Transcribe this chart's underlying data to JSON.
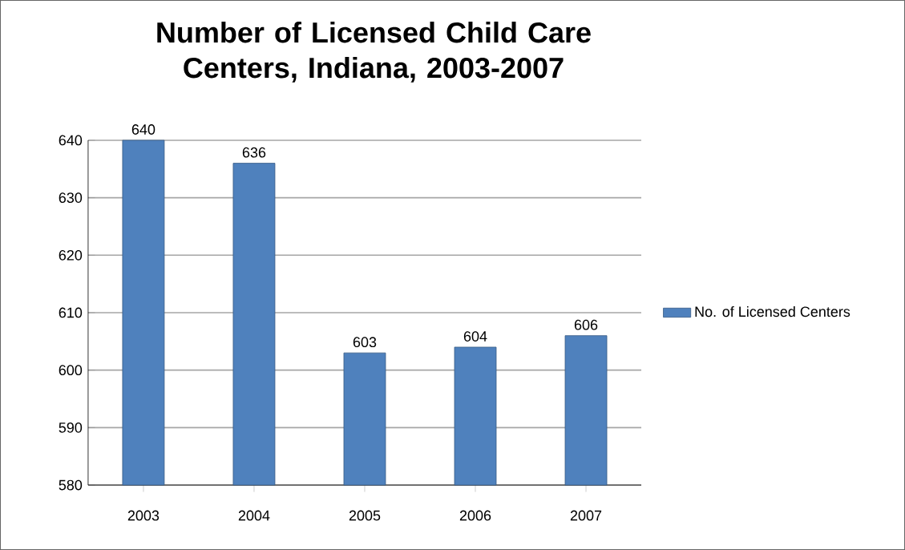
{
  "chart_data": {
    "type": "bar",
    "title": "Number of Licensed Child Care Centers, Indiana, 2003-2007",
    "categories": [
      "2003",
      "2004",
      "2005",
      "2006",
      "2007"
    ],
    "series": [
      {
        "name": "No. of Licensed Centers",
        "color": "#4f81bd",
        "values": [
          640,
          636,
          603,
          604,
          606
        ]
      }
    ],
    "ylim": [
      580,
      640
    ],
    "yticks": [
      580,
      590,
      600,
      610,
      620,
      630,
      640
    ],
    "grid": "y",
    "legend": "right",
    "data_labels": true
  }
}
